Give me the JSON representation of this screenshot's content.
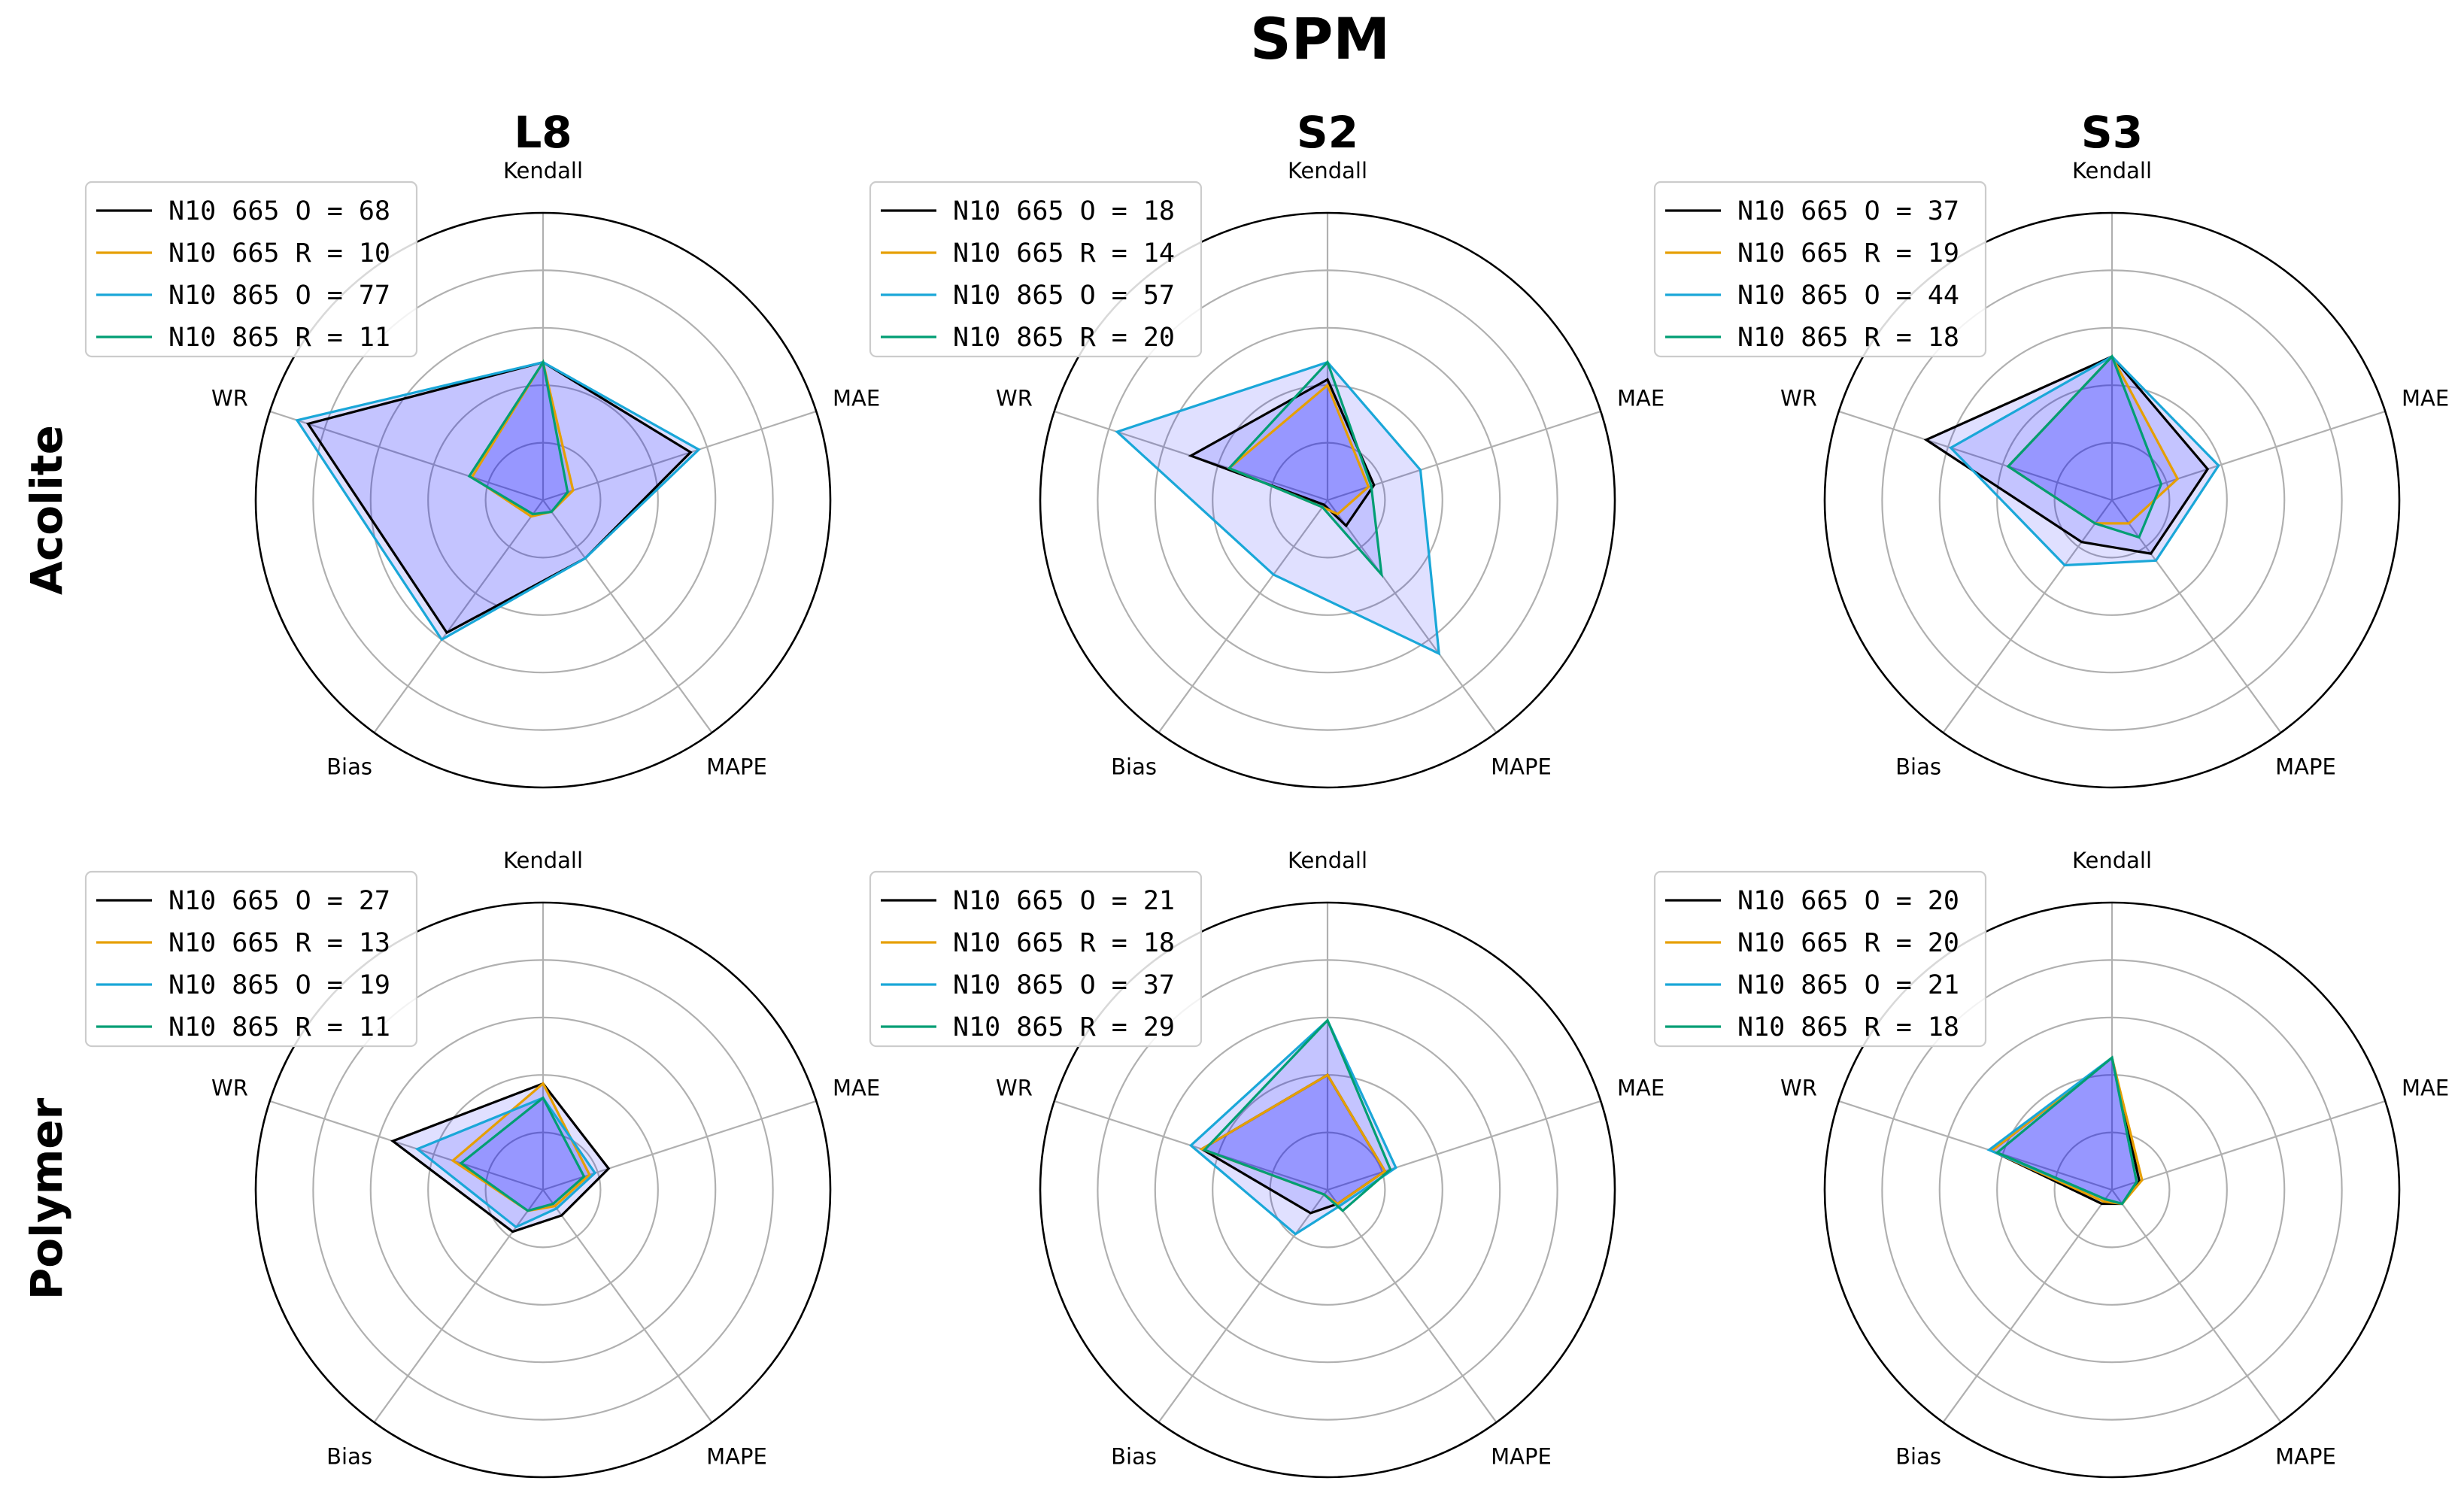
{
  "title": "SPM",
  "columns": [
    "L8",
    "S2",
    "S3"
  ],
  "rows": [
    "Acolite",
    "Polymer"
  ],
  "axes": [
    "Kendall",
    "MAE",
    "MAPE",
    "Bias",
    "WR"
  ],
  "colors": {
    "N10 665 O": "#000000",
    "N10 665 R": "#E69F00",
    "N10 865 O": "#1AA7D8",
    "N10 865 R": "#009E73",
    "fill": "#0000FF",
    "grid": "#b0b0b0",
    "frame": "#000000"
  },
  "chart_data": [
    {
      "type": "radar",
      "row": "Acolite",
      "column": "L8",
      "rlim": [
        0,
        5
      ],
      "grid": true,
      "legend_position": "top-left",
      "axes": [
        "Kendall",
        "MAE",
        "MAPE",
        "Bias",
        "WR"
      ],
      "series": [
        {
          "name": "N10 665 O",
          "legend": "N10 665 O = 68",
          "values": [
            2.4,
            2.7,
            1.25,
            2.85,
            4.3
          ]
        },
        {
          "name": "N10 665 R",
          "legend": "N10 665 R = 10",
          "values": [
            2.4,
            0.55,
            0.25,
            0.35,
            1.3
          ]
        },
        {
          "name": "N10 865 O",
          "legend": "N10 865 O = 77",
          "values": [
            2.4,
            2.85,
            1.25,
            3.0,
            4.5
          ]
        },
        {
          "name": "N10 865 R",
          "legend": "N10 865 R = 11",
          "values": [
            2.4,
            0.45,
            0.25,
            0.3,
            1.35
          ]
        }
      ]
    },
    {
      "type": "radar",
      "row": "Acolite",
      "column": "S2",
      "rlim": [
        0,
        5
      ],
      "grid": true,
      "legend_position": "top-left",
      "axes": [
        "Kendall",
        "MAE",
        "MAPE",
        "Bias",
        "WR"
      ],
      "series": [
        {
          "name": "N10 665 O",
          "legend": "N10 665 O = 18",
          "values": [
            2.1,
            0.85,
            0.55,
            0.1,
            2.5
          ]
        },
        {
          "name": "N10 665 R",
          "legend": "N10 665 R = 14",
          "values": [
            2.0,
            0.75,
            0.3,
            0.15,
            1.8
          ]
        },
        {
          "name": "N10 865 O",
          "legend": "N10 865 O = 57",
          "values": [
            2.4,
            1.7,
            3.3,
            1.6,
            3.85
          ]
        },
        {
          "name": "N10 865 R",
          "legend": "N10 865 R = 20",
          "values": [
            2.4,
            0.8,
            1.6,
            0.15,
            1.8
          ]
        }
      ]
    },
    {
      "type": "radar",
      "row": "Acolite",
      "column": "S3",
      "rlim": [
        0,
        5
      ],
      "grid": true,
      "legend_position": "top-left",
      "axes": [
        "Kendall",
        "MAE",
        "MAPE",
        "Bias",
        "WR"
      ],
      "series": [
        {
          "name": "N10 665 O",
          "legend": "N10 665 O = 37",
          "values": [
            2.5,
            1.75,
            1.15,
            0.9,
            3.4
          ]
        },
        {
          "name": "N10 665 R",
          "legend": "N10 665 R = 19",
          "values": [
            2.5,
            1.2,
            0.5,
            0.5,
            1.9
          ]
        },
        {
          "name": "N10 865 O",
          "legend": "N10 865 O = 44",
          "values": [
            2.5,
            1.95,
            1.3,
            1.4,
            2.95
          ]
        },
        {
          "name": "N10 865 R",
          "legend": "N10 865 R = 18",
          "values": [
            2.5,
            0.9,
            0.8,
            0.5,
            1.9
          ]
        }
      ]
    },
    {
      "type": "radar",
      "row": "Polymer",
      "column": "L8",
      "rlim": [
        0,
        5
      ],
      "grid": true,
      "legend_position": "top-left",
      "axes": [
        "Kendall",
        "MAE",
        "MAPE",
        "Bias",
        "WR"
      ],
      "series": [
        {
          "name": "N10 665 O",
          "legend": "N10 665 O = 27",
          "values": [
            1.85,
            1.2,
            0.55,
            0.9,
            2.75
          ]
        },
        {
          "name": "N10 665 R",
          "legend": "N10 665 R = 13",
          "values": [
            1.85,
            0.85,
            0.35,
            0.45,
            1.65
          ]
        },
        {
          "name": "N10 865 O",
          "legend": "N10 865 O = 19",
          "values": [
            1.6,
            0.95,
            0.4,
            0.8,
            2.3
          ]
        },
        {
          "name": "N10 865 R",
          "legend": "N10 865 R = 11",
          "values": [
            1.6,
            0.75,
            0.3,
            0.45,
            1.5
          ]
        }
      ]
    },
    {
      "type": "radar",
      "row": "Polymer",
      "column": "S2",
      "rlim": [
        0,
        5
      ],
      "grid": true,
      "legend_position": "top-left",
      "axes": [
        "Kendall",
        "MAE",
        "MAPE",
        "Bias",
        "WR"
      ],
      "series": [
        {
          "name": "N10 665 O",
          "legend": "N10 665 O = 21",
          "values": [
            2.0,
            1.05,
            0.3,
            0.5,
            2.3
          ]
        },
        {
          "name": "N10 665 R",
          "legend": "N10 665 R = 18",
          "values": [
            2.0,
            1.05,
            0.3,
            0.1,
            2.3
          ]
        },
        {
          "name": "N10 865 O",
          "legend": "N10 865 O = 37",
          "values": [
            2.95,
            1.25,
            0.35,
            0.95,
            2.5
          ]
        },
        {
          "name": "N10 865 R",
          "legend": "N10 865 R = 29",
          "values": [
            2.95,
            1.15,
            0.45,
            0.1,
            2.25
          ]
        }
      ]
    },
    {
      "type": "radar",
      "row": "Polymer",
      "column": "S3",
      "rlim": [
        0,
        5
      ],
      "grid": true,
      "legend_position": "top-left",
      "axes": [
        "Kendall",
        "MAE",
        "MAPE",
        "Bias",
        "WR"
      ],
      "series": [
        {
          "name": "N10 665 O",
          "legend": "N10 665 O = 20",
          "values": [
            2.3,
            0.5,
            0.3,
            0.3,
            2.2
          ]
        },
        {
          "name": "N10 665 R",
          "legend": "N10 665 R = 20",
          "values": [
            2.3,
            0.55,
            0.3,
            0.25,
            2.2
          ]
        },
        {
          "name": "N10 865 O",
          "legend": "N10 865 O = 21",
          "values": [
            2.3,
            0.45,
            0.3,
            0.2,
            2.25
          ]
        },
        {
          "name": "N10 865 R",
          "legend": "N10 865 R = 18",
          "values": [
            2.3,
            0.45,
            0.3,
            0.2,
            2.1
          ]
        }
      ]
    }
  ]
}
